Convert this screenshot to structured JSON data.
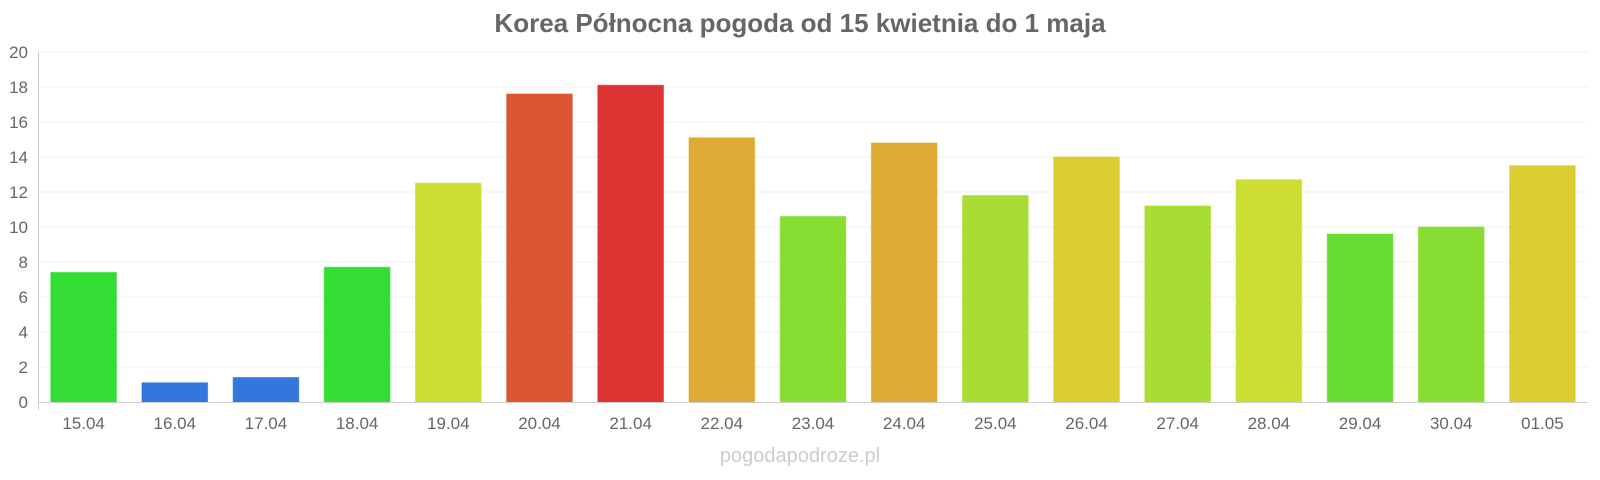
{
  "chart_data": {
    "type": "bar",
    "title": "Korea Północna pogoda od 15 kwietnia do 1 maja",
    "xlabel": "",
    "ylabel": "",
    "categories": [
      "15.04",
      "16.04",
      "17.04",
      "18.04",
      "19.04",
      "20.04",
      "21.04",
      "22.04",
      "23.04",
      "24.04",
      "25.04",
      "26.04",
      "27.04",
      "28.04",
      "29.04",
      "30.04",
      "01.05"
    ],
    "values": [
      7.4,
      1.1,
      1.4,
      7.7,
      12.5,
      17.6,
      18.1,
      15.1,
      10.6,
      14.8,
      11.8,
      14.0,
      11.2,
      12.7,
      9.6,
      10.0,
      13.5
    ],
    "colors": [
      "#33dd33",
      "#3377dd",
      "#3377dd",
      "#33dd33",
      "#ccdd33",
      "#dd5533",
      "#dd3333",
      "#ddaa33",
      "#88dd33",
      "#ddaa33",
      "#aadd33",
      "#ddcc33",
      "#aadd33",
      "#ccdd33",
      "#66dd33",
      "#88dd33",
      "#ddcc33"
    ],
    "ylim": [
      0,
      20
    ],
    "yticks": [
      "0",
      "2",
      "4",
      "6",
      "8",
      "10",
      "12",
      "14",
      "16",
      "18",
      "20"
    ],
    "grid": true,
    "legend": "none"
  },
  "watermark": "pogodapodroze.pl"
}
